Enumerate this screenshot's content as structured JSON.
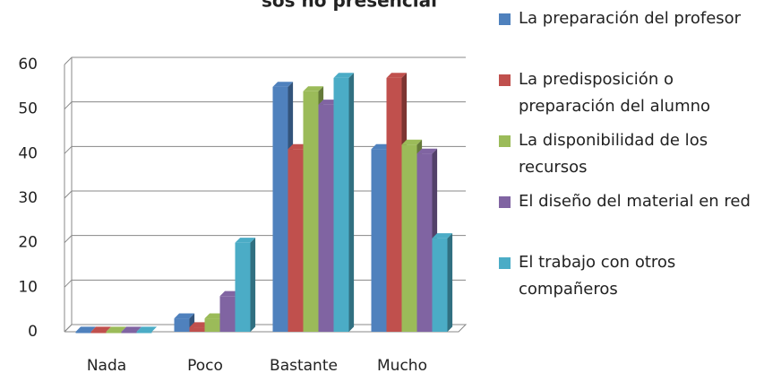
{
  "chart_data": {
    "type": "bar",
    "title": "sos no presencial",
    "categories": [
      "Nada",
      "Poco",
      "Bastante",
      "Mucho"
    ],
    "series": [
      {
        "name": "La preparación del profesor",
        "color": "#4f81bd",
        "values": [
          0,
          3,
          55,
          41
        ]
      },
      {
        "name": "La predisposición o preparación del alumno",
        "color": "#c0504d",
        "values": [
          0,
          1,
          41,
          57
        ]
      },
      {
        "name": "La disponibilidad de los recursos",
        "color": "#9bbb59",
        "values": [
          0,
          3,
          54,
          42
        ]
      },
      {
        "name": "El diseño del material en red",
        "color": "#8064a2",
        "values": [
          0,
          8,
          51,
          40
        ]
      },
      {
        "name": "El trabajo con otros compañeros",
        "color": "#4bacc6",
        "values": [
          0,
          20,
          57,
          21
        ]
      }
    ],
    "ylim": [
      0,
      60
    ],
    "yticks": [
      0,
      10,
      20,
      30,
      40,
      50,
      60
    ],
    "grid": true,
    "legend": "right"
  }
}
